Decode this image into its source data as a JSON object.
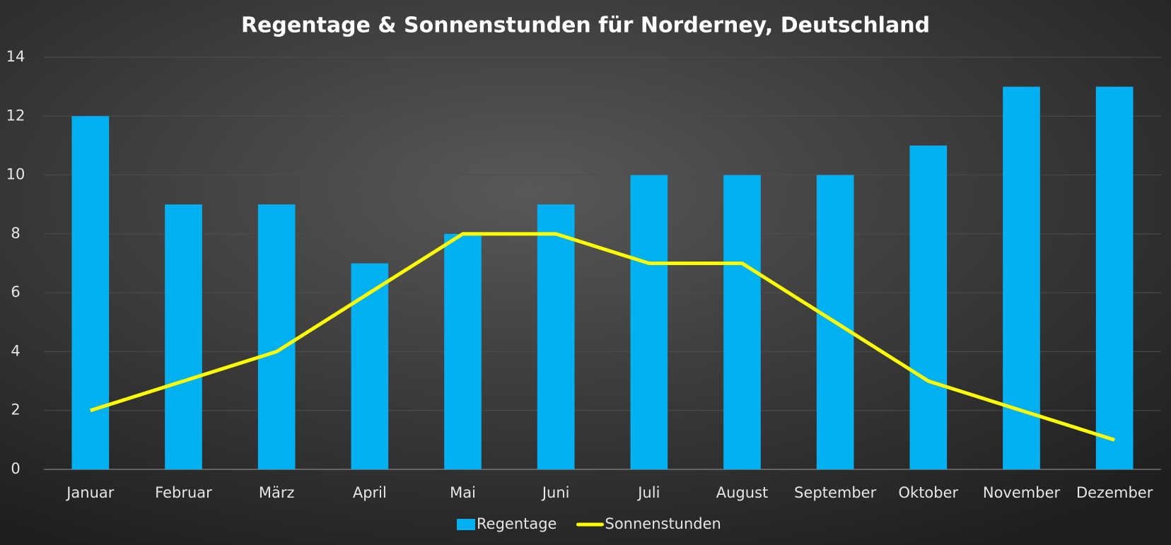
{
  "chart_data": {
    "type": "bar",
    "title": "Regentage & Sonnenstunden für Norderney, Deutschland",
    "categories": [
      "Januar",
      "Februar",
      "März",
      "April",
      "Mai",
      "Juni",
      "Juli",
      "August",
      "September",
      "Oktober",
      "November",
      "Dezember"
    ],
    "series": [
      {
        "name": "Regentage",
        "type": "bar",
        "color": "#00b0f0",
        "values": [
          12,
          9,
          9,
          7,
          8,
          9,
          10,
          10,
          10,
          11,
          13,
          13
        ]
      },
      {
        "name": "Sonnenstunden",
        "type": "line",
        "color": "#ffff00",
        "values": [
          2,
          3,
          4,
          6,
          8,
          8,
          7,
          7,
          5,
          3,
          2,
          1
        ]
      }
    ],
    "ylim": [
      0,
      14
    ],
    "yticks": [
      0,
      2,
      4,
      6,
      8,
      10,
      12,
      14
    ],
    "grid": true,
    "legend": "bottom"
  }
}
